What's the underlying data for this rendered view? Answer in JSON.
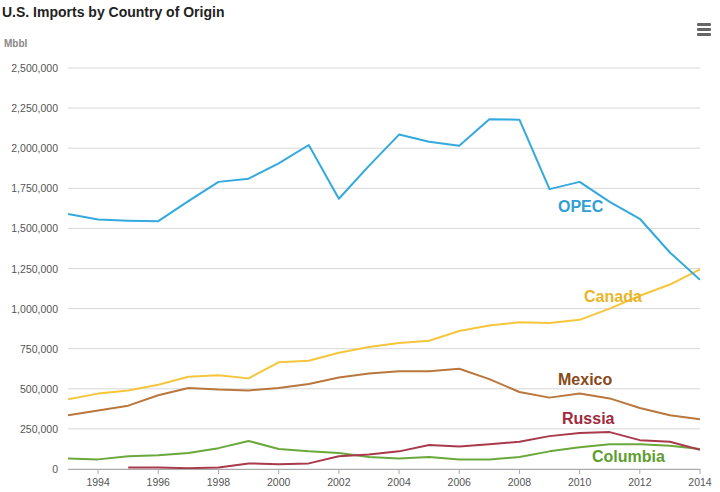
{
  "chart_data": {
    "type": "line",
    "title": "U.S. Imports by Country of Origin",
    "y_label": "Mbbl",
    "x": [
      1993,
      1994,
      1995,
      1996,
      1997,
      1998,
      1999,
      2000,
      2001,
      2002,
      2003,
      2004,
      2005,
      2006,
      2007,
      2008,
      2009,
      2010,
      2011,
      2012,
      2013,
      2014
    ],
    "series": [
      {
        "name": "OPEC",
        "color": "#33a9dd",
        "values": [
          1590000,
          1555000,
          1548000,
          1545000,
          1670000,
          1790000,
          1810000,
          1905000,
          2020000,
          1685000,
          1890000,
          2085000,
          2040000,
          2015000,
          2180000,
          2178000,
          1745000,
          1790000,
          1665000,
          1560000,
          1350000,
          1180000
        ]
      },
      {
        "name": "Canada",
        "color": "#f5c63c",
        "values": [
          435000,
          470000,
          490000,
          525000,
          575000,
          585000,
          565000,
          665000,
          675000,
          725000,
          760000,
          785000,
          800000,
          860000,
          895000,
          915000,
          910000,
          930000,
          1000000,
          1080000,
          1150000,
          1245000
        ]
      },
      {
        "name": "Mexico",
        "color": "#b9773d",
        "values": [
          335000,
          365000,
          395000,
          460000,
          505000,
          495000,
          490000,
          505000,
          530000,
          570000,
          595000,
          610000,
          610000,
          625000,
          560000,
          480000,
          445000,
          470000,
          440000,
          380000,
          335000,
          310000
        ]
      },
      {
        "name": "Russia",
        "color": "#a83a4c",
        "values": [
          null,
          null,
          10000,
          10000,
          5000,
          10000,
          35000,
          30000,
          35000,
          80000,
          90000,
          110000,
          150000,
          140000,
          155000,
          170000,
          205000,
          225000,
          230000,
          180000,
          170000,
          120000
        ]
      },
      {
        "name": "Columbia",
        "color": "#6aa83c",
        "values": [
          65000,
          60000,
          80000,
          85000,
          100000,
          130000,
          175000,
          125000,
          110000,
          100000,
          75000,
          65000,
          75000,
          60000,
          60000,
          75000,
          110000,
          135000,
          155000,
          155000,
          145000,
          125000
        ]
      }
    ],
    "xlim": [
      1993,
      2014
    ],
    "xticks": [
      1994,
      1996,
      1998,
      2000,
      2002,
      2004,
      2006,
      2008,
      2010,
      2012,
      2014
    ],
    "ylim": [
      0,
      2500000
    ],
    "yticks": [
      0,
      {
        "value": 250000,
        "label": "250,000"
      },
      {
        "value": 500000,
        "label": "500,000"
      },
      {
        "value": 750000,
        "label": "750,000"
      },
      {
        "value": 1000000,
        "label": "1,000,000"
      },
      {
        "value": 1250000,
        "label": "1,250,000"
      },
      {
        "value": 1500000,
        "label": "1,500,000"
      },
      {
        "value": 1750000,
        "label": "1,750,000"
      },
      {
        "value": 2000000,
        "label": "2,000,000"
      },
      {
        "value": 2250000,
        "label": "2,250,000"
      },
      {
        "value": 2500000,
        "label": "2,500,000"
      }
    ],
    "grid": true
  }
}
